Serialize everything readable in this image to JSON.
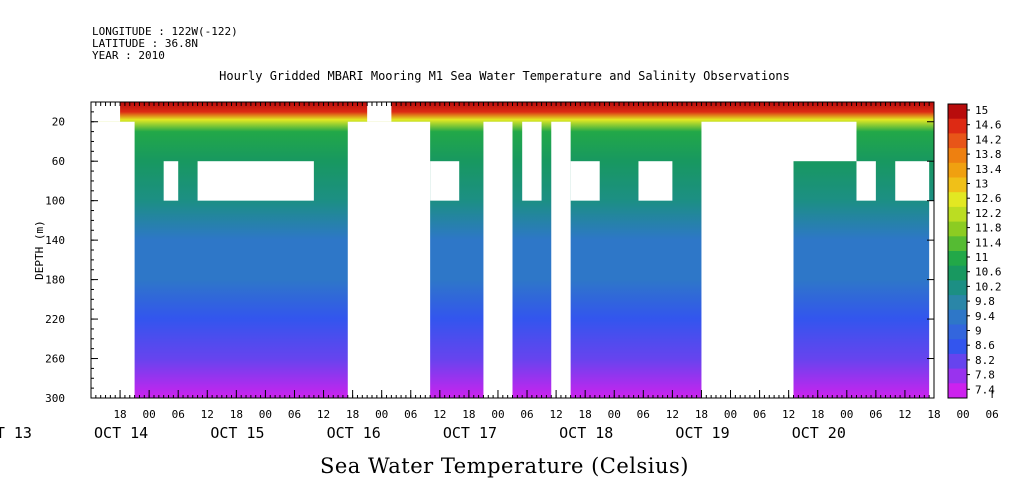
{
  "header": {
    "longitude": "LONGITUDE : 122W(-122)",
    "latitude": "LATITUDE : 36.8N",
    "year": "YEAR : 2010"
  },
  "chart_data": {
    "type": "heatmap",
    "title": "Hourly Gridded MBARI Mooring M1 Sea Water Temperature and Salinity Observations",
    "subtitle": "Sea Water Temperature (Celsius)",
    "xlabel": "",
    "ylabel": "DEPTH (m)",
    "ylim": [
      300,
      0
    ],
    "y_ticks": [
      20,
      60,
      100,
      140,
      180,
      220,
      260,
      300
    ],
    "x_range_hours": [
      "2010-10-13T12:00",
      "2010-10-20T18:00"
    ],
    "x_hour_ticks": [
      "18",
      "00",
      "06",
      "12",
      "18",
      "00",
      "06",
      "12",
      "18",
      "00",
      "06",
      "12",
      "18",
      "00",
      "06",
      "12",
      "18",
      "00",
      "06",
      "12",
      "18",
      "00",
      "06",
      "12",
      "18",
      "00",
      "06",
      "12",
      "18",
      "00",
      "06",
      "12"
    ],
    "x_day_labels": [
      {
        "label": "OCT 13",
        "date": "2010-10-13"
      },
      {
        "label": "OCT 14",
        "date": "2010-10-14"
      },
      {
        "label": "OCT 15",
        "date": "2010-10-15"
      },
      {
        "label": "OCT 16",
        "date": "2010-10-16"
      },
      {
        "label": "OCT 17",
        "date": "2010-10-17"
      },
      {
        "label": "OCT 18",
        "date": "2010-10-18"
      },
      {
        "label": "OCT 19",
        "date": "2010-10-19"
      },
      {
        "label": "OCT 20",
        "date": "2010-10-20"
      }
    ],
    "colorbar": {
      "levels": [
        7.4,
        7.8,
        8.2,
        8.6,
        9,
        9.4,
        9.8,
        10.2,
        10.6,
        11,
        11.4,
        11.8,
        12.2,
        12.6,
        13,
        13.4,
        13.8,
        14.2,
        14.6,
        15
      ],
      "labels": [
        "15",
        "14.6",
        "14.2",
        "13.8",
        "13.4",
        "13",
        "12.6",
        "12.2",
        "11.8",
        "11.4",
        "11",
        "10.6",
        "10.2",
        "9.8",
        "9.4",
        "9",
        "8.6",
        "8.2",
        "7.8",
        "7.4"
      ],
      "colors": [
        "#cc22ee",
        "#9933ee",
        "#6644ee",
        "#3355ee",
        "#3366dd",
        "#2e77c8",
        "#2a86a8",
        "#1c8f84",
        "#189860",
        "#22a848",
        "#55bb33",
        "#8ccc22",
        "#bbdd22",
        "#e2e822",
        "#f0c018",
        "#f0a010",
        "#ee8010",
        "#e85518",
        "#dd2a14",
        "#b80c0c"
      ]
    },
    "temperature_profile": [
      {
        "depth": 0,
        "value": 15
      },
      {
        "depth": 10,
        "value": 14.4
      },
      {
        "depth": 18,
        "value": 12.4
      },
      {
        "depth": 30,
        "value": 11.2
      },
      {
        "depth": 60,
        "value": 10.7
      },
      {
        "depth": 100,
        "value": 10.2
      },
      {
        "depth": 140,
        "value": 9.6
      },
      {
        "depth": 180,
        "value": 9.3
      },
      {
        "depth": 220,
        "value": 8.9
      },
      {
        "depth": 260,
        "value": 8.4
      },
      {
        "depth": 300,
        "value": 7.6
      }
    ],
    "data_gaps_hours": [
      {
        "t0": 0,
        "t1": 6,
        "d0": 0,
        "d1": 20
      },
      {
        "t0": 0,
        "t1": 9,
        "d0": 20,
        "d1": 300
      },
      {
        "t0": 15,
        "t1": 18,
        "d0": 60,
        "d1": 100
      },
      {
        "t0": 22,
        "t1": 46,
        "d0": 60,
        "d1": 100
      },
      {
        "t0": 53,
        "t1": 70,
        "d0": 20,
        "d1": 300
      },
      {
        "t0": 57,
        "t1": 62,
        "d0": 0,
        "d1": 20
      },
      {
        "t0": 70,
        "t1": 76,
        "d0": 60,
        "d1": 100
      },
      {
        "t0": 81,
        "t1": 87,
        "d0": 20,
        "d1": 300
      },
      {
        "t0": 89,
        "t1": 93,
        "d0": 20,
        "d1": 100
      },
      {
        "t0": 95,
        "t1": 99,
        "d0": 20,
        "d1": 300
      },
      {
        "t0": 99,
        "t1": 105,
        "d0": 60,
        "d1": 100
      },
      {
        "t0": 113,
        "t1": 120,
        "d0": 60,
        "d1": 100
      },
      {
        "t0": 126,
        "t1": 145,
        "d0": 20,
        "d1": 300
      },
      {
        "t0": 145,
        "t1": 158,
        "d0": 20,
        "d1": 60
      },
      {
        "t0": 158,
        "t1": 162,
        "d0": 60,
        "d1": 100
      },
      {
        "t0": 166,
        "t1": 173,
        "d0": 60,
        "d1": 100
      },
      {
        "t0": 173,
        "t1": 181,
        "d0": 100,
        "d1": 300
      },
      {
        "t0": 181,
        "t1": 188,
        "d0": 60,
        "d1": 100
      },
      {
        "t0": 186,
        "t1": 191,
        "d0": 100,
        "d1": 300
      },
      {
        "t0": 191,
        "t1": 198,
        "d0": 20,
        "d1": 300
      },
      {
        "t0": 194,
        "t1": 196,
        "d0": 20,
        "d1": 80
      },
      {
        "t0": 198,
        "t1": 203,
        "d0": 20,
        "d1": 60
      },
      {
        "t0": 202,
        "t1": 204,
        "d0": 60,
        "d1": 300
      },
      {
        "t0": 204,
        "t1": 210,
        "d0": 60,
        "d1": 100
      },
      {
        "t0": 207,
        "t1": 213,
        "d0": 20,
        "d1": 300
      },
      {
        "t0": 213,
        "t1": 222,
        "d0": 60,
        "d1": 100
      },
      {
        "t0": 222,
        "t1": 226,
        "d0": 20,
        "d1": 60
      },
      {
        "t0": 233,
        "t1": 246,
        "d0": 60,
        "d1": 100
      },
      {
        "t0": 242,
        "t1": 248,
        "d0": 20,
        "d1": 300
      },
      {
        "t0": 248,
        "t1": 254,
        "d0": 20,
        "d1": 60
      },
      {
        "t0": 250,
        "t1": 254,
        "d0": 100,
        "d1": 150
      },
      {
        "t0": 250,
        "t1": 256,
        "d0": 150,
        "d1": 300
      }
    ]
  }
}
